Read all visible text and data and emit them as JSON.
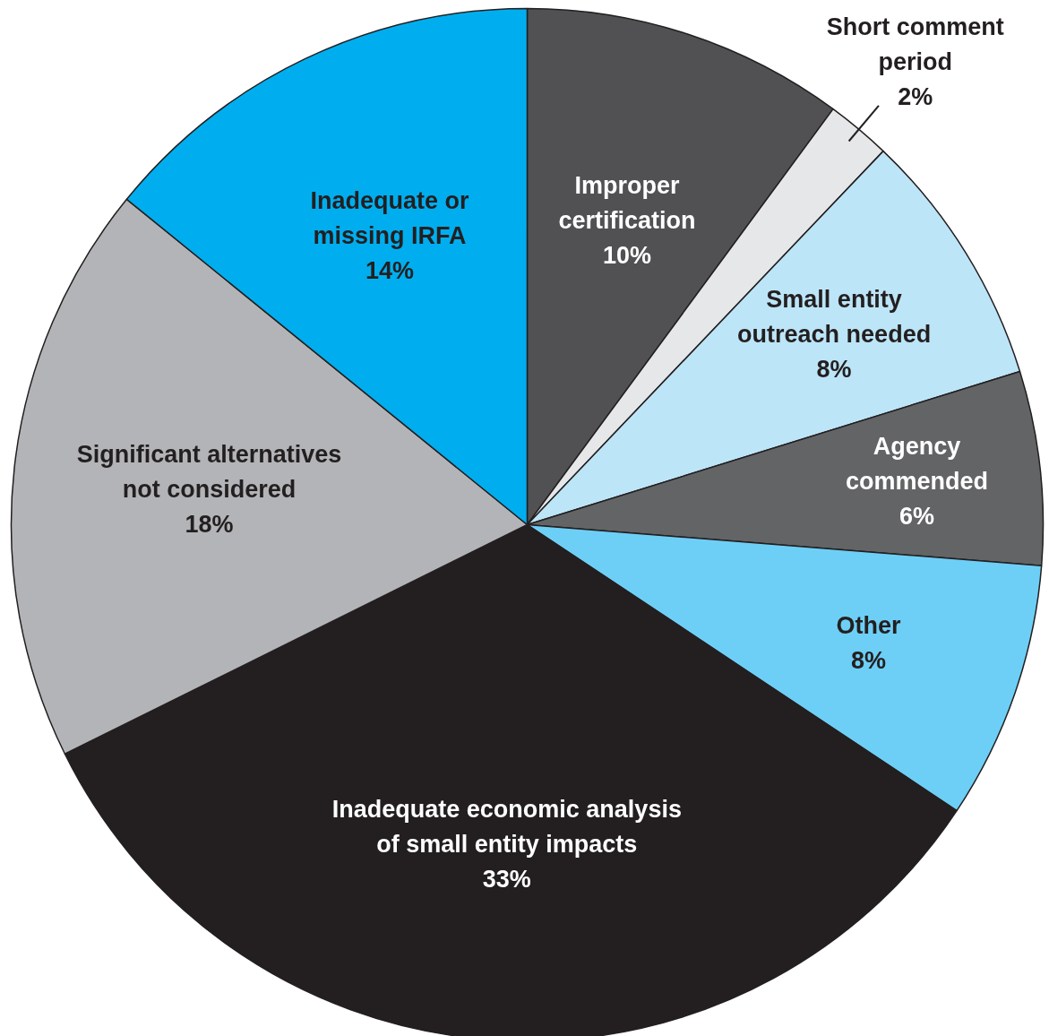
{
  "chart_data": {
    "type": "pie",
    "categories": [
      "Improper certification",
      "Short comment period",
      "Small entity outreach needed",
      "Agency commended",
      "Other",
      "Inadequate economic analysis of small entity impacts",
      "Significant alternatives not considered",
      "Inadequate or missing IRFA"
    ],
    "values": [
      10,
      2,
      8,
      6,
      8,
      33,
      18,
      14
    ],
    "value_labels": [
      "10%",
      "2%",
      "8%",
      "6%",
      "8%",
      "33%",
      "18%",
      "14%"
    ],
    "colors": [
      "#515154",
      "#e6e7e8",
      "#bde5f8",
      "#636466",
      "#6dcff6",
      "#231f20",
      "#b3b4b7",
      "#00aeef"
    ]
  }
}
